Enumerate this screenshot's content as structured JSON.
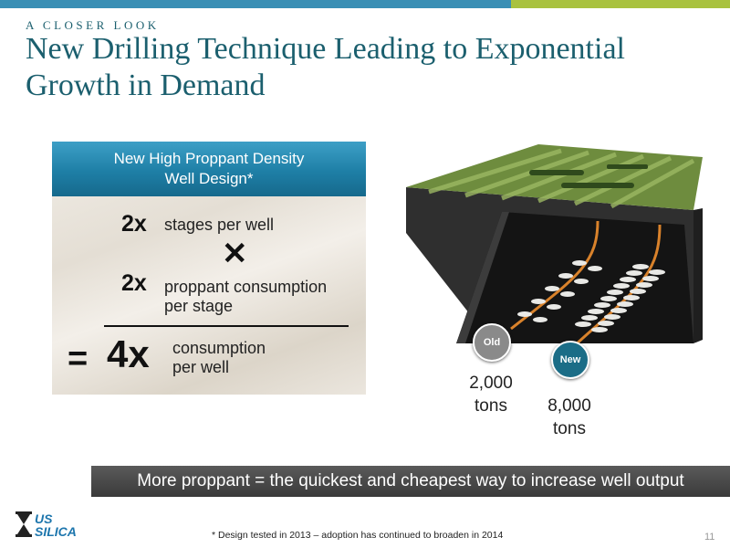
{
  "header": {
    "eyebrow": "A CLOSER LOOK",
    "title": "New Drilling Technique Leading to Exponential Growth in Demand"
  },
  "panel": {
    "heading_line1": "New High Proppant Density",
    "heading_line2": "Well Design*",
    "row1": {
      "multiplier": "2x",
      "text": "stages per well"
    },
    "times_symbol": "✕",
    "row2": {
      "multiplier": "2x",
      "text_line1": "proppant consumption",
      "text_line2": "per stage"
    },
    "equals_symbol": "=",
    "result": {
      "multiplier": "4x",
      "text_line1": "consumption",
      "text_line2": "per well"
    }
  },
  "diagram": {
    "old": {
      "badge": "Old",
      "amount": "2,000",
      "unit": "tons"
    },
    "new": {
      "badge": "New",
      "amount": "8,000",
      "unit": "tons"
    },
    "colors": {
      "ground": "#2b2b2b",
      "surface": "#6e8c3e",
      "old_well": "#d9822b",
      "new_well": "#d9822b",
      "fracture": "#e9e9e6"
    }
  },
  "banner": {
    "text": "More proppant = the quickest and cheapest way to increase well output"
  },
  "logo": {
    "line1": "US",
    "line2": "SILICA"
  },
  "footnote": "* Design tested in 2013 – adoption has continued to broaden in 2014",
  "page_number": "11",
  "colors": {
    "accent_blue": "#3a8fb5",
    "accent_green": "#a9c23f",
    "title_teal": "#1b5f6e"
  }
}
